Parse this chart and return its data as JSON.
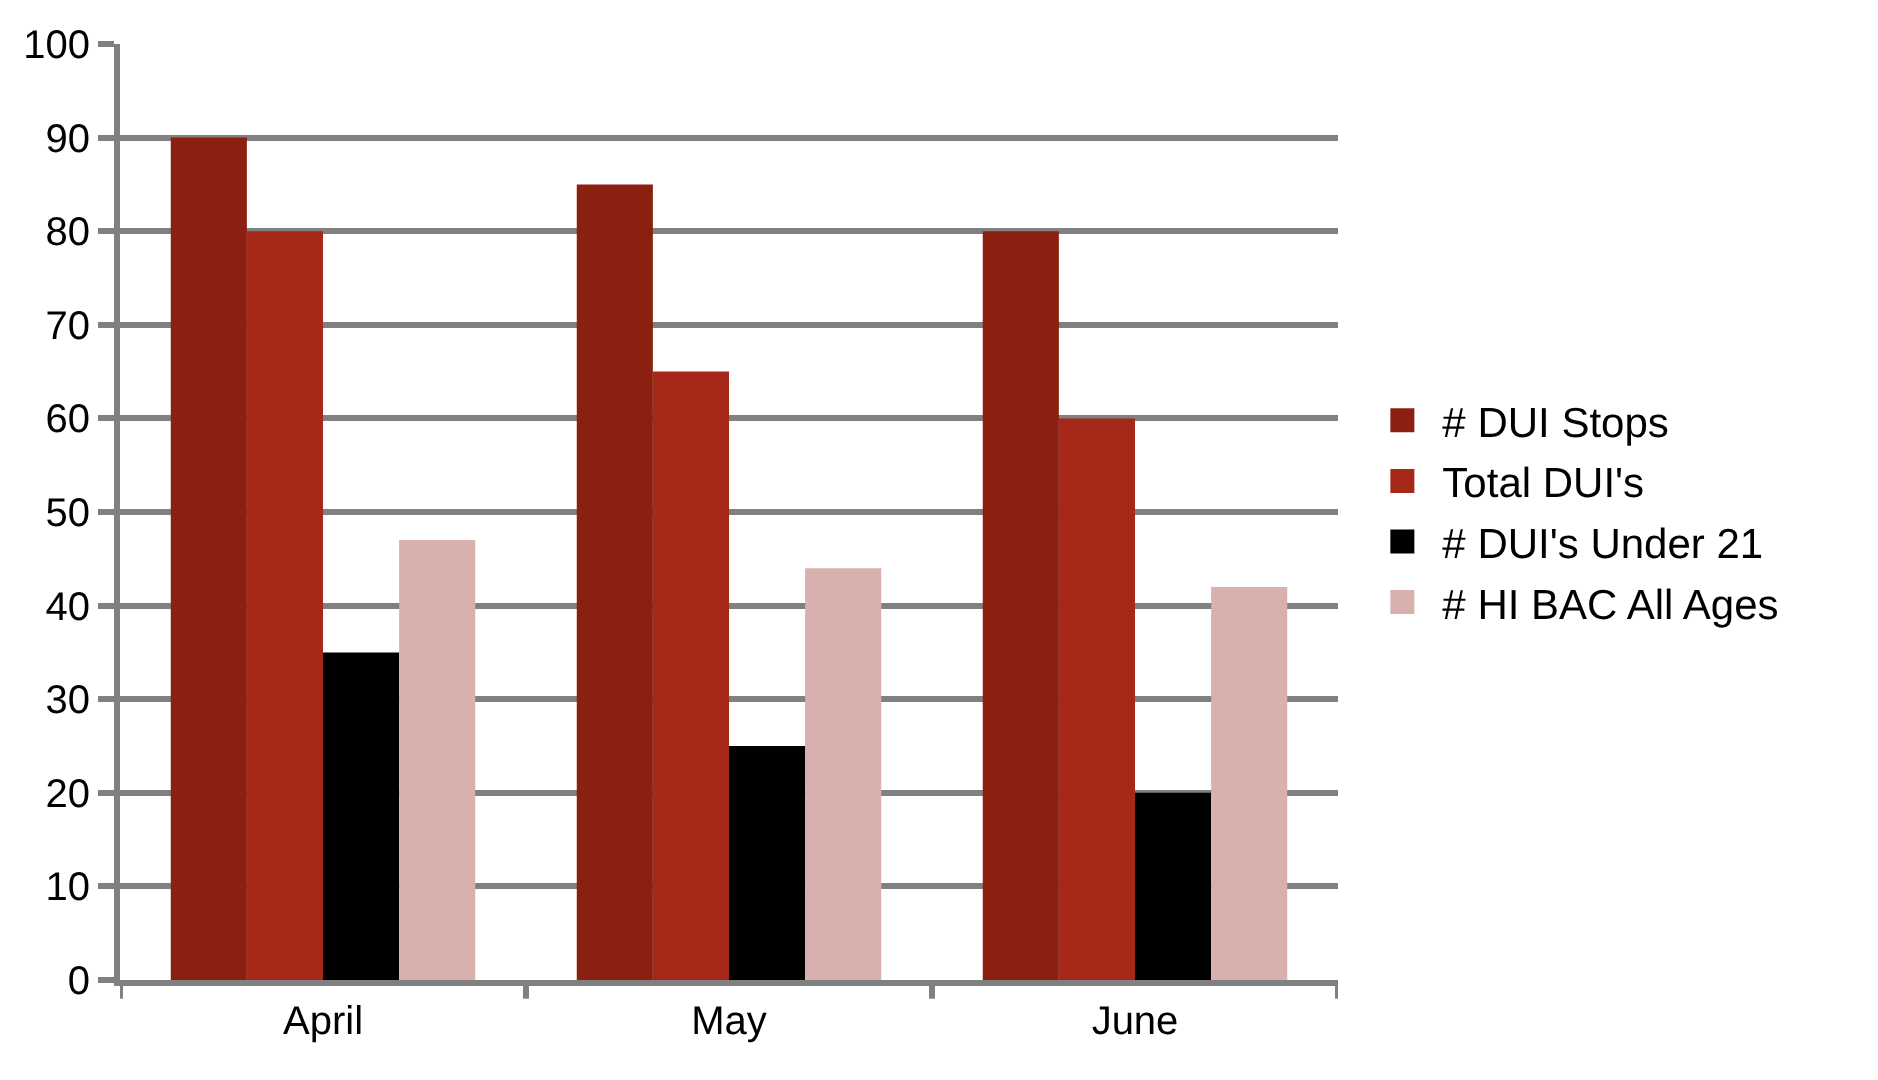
{
  "chart_data": {
    "type": "bar",
    "categories": [
      "April",
      "May",
      "June"
    ],
    "series": [
      {
        "name": "# DUI Stops",
        "color": "#8b2010",
        "values": [
          90,
          85,
          80
        ]
      },
      {
        "name": "Total DUI's",
        "color": "#a52818",
        "values": [
          80,
          65,
          60
        ]
      },
      {
        "name": "# DUI's Under 21",
        "color": "#000000",
        "values": [
          35,
          25,
          20
        ]
      },
      {
        "name": "# HI BAC All Ages",
        "color": "#d8b0ae",
        "values": [
          47,
          44,
          42
        ]
      }
    ],
    "ylim": [
      0,
      100
    ],
    "yticks": [
      0,
      10,
      20,
      30,
      40,
      50,
      60,
      70,
      80,
      90,
      100
    ],
    "grid": "y",
    "legend": "right"
  }
}
